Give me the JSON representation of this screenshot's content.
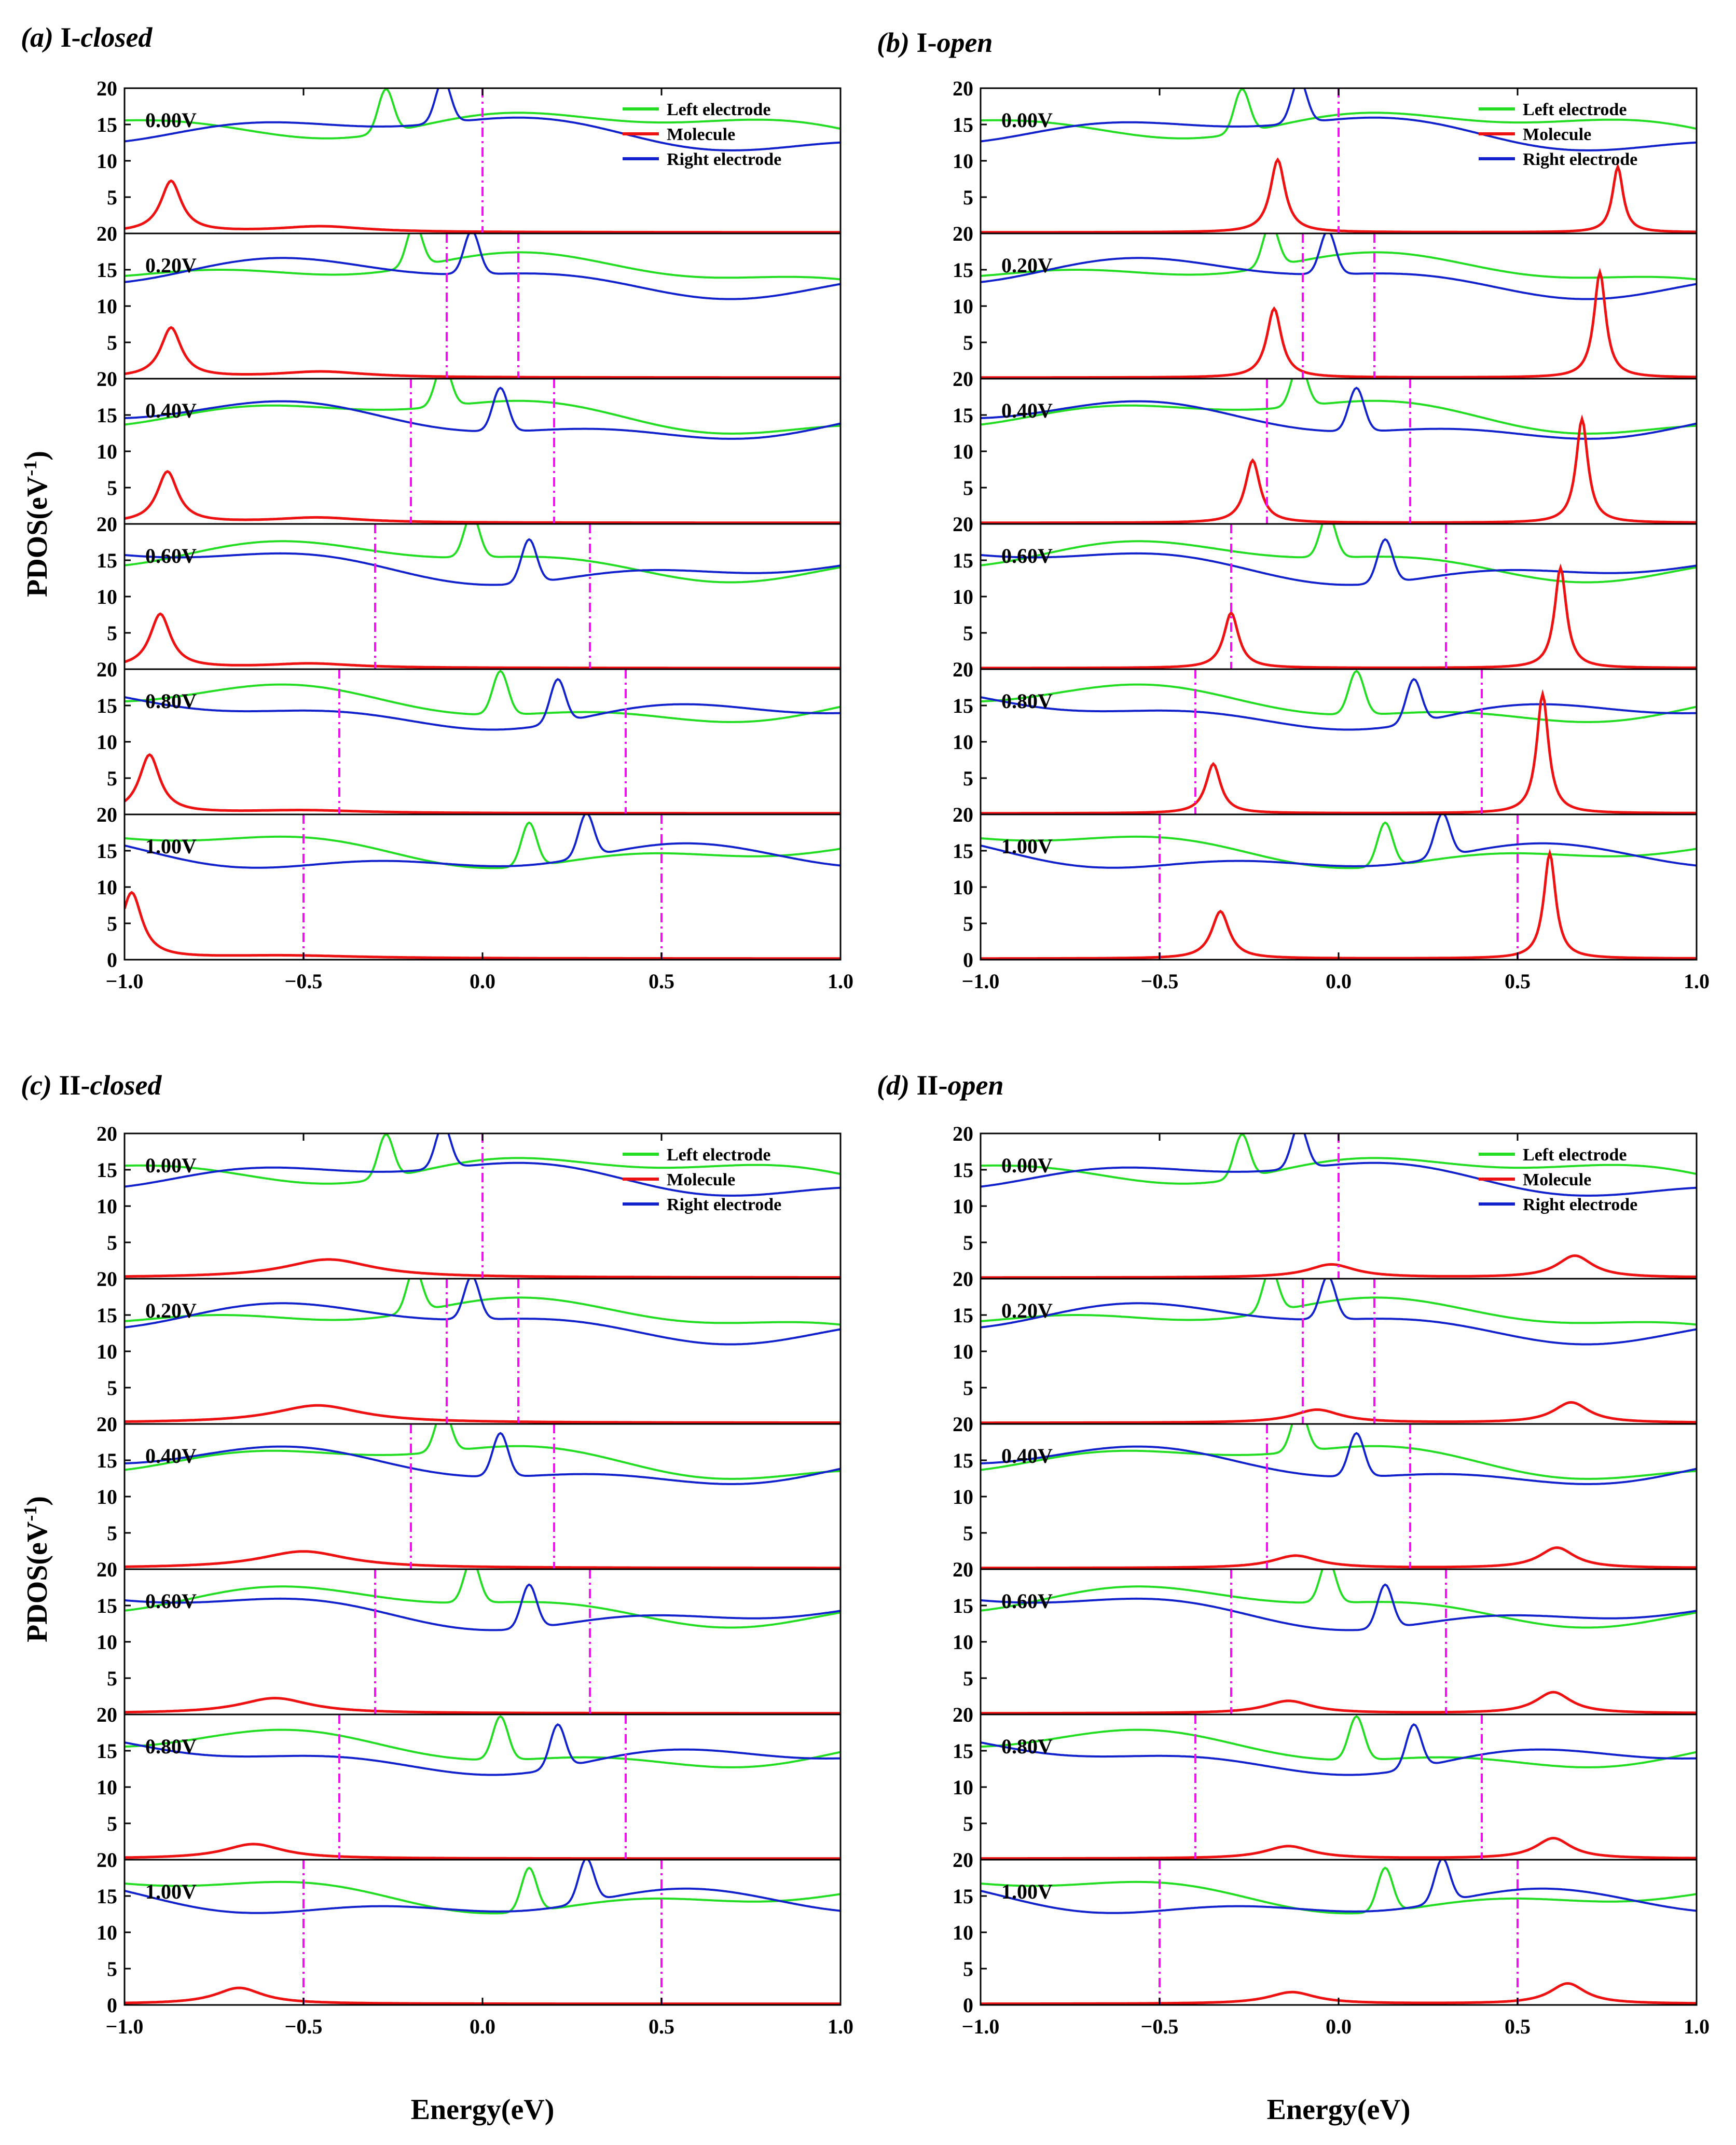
{
  "chart_data": {
    "type": "line",
    "xlabel": "Energy(eV)",
    "ylabel": "PDOS(eV",
    "ylabel_sup": "-1",
    "ylabel_close": ")",
    "xlim": [
      -1.0,
      1.0
    ],
    "ylim": [
      0,
      20
    ],
    "xticks": [
      -1.0,
      -0.5,
      0.0,
      0.5,
      1.0
    ],
    "xtick_labels": [
      "−1.0",
      "−0.5",
      "0.0",
      "0.5",
      "1.0"
    ],
    "yticks": [
      0,
      5,
      10,
      15,
      20
    ],
    "ytick_labels": [
      "0",
      "5",
      "10",
      "15",
      "20"
    ],
    "biases": [
      "0.00V",
      "0.20V",
      "0.40V",
      "0.60V",
      "0.80V",
      "1.00V"
    ],
    "bias_values": [
      0.0,
      0.2,
      0.4,
      0.6,
      0.8,
      1.0
    ],
    "legend": [
      "Left electrode",
      "Molecule",
      "Right electrode"
    ],
    "colors": {
      "left": "#22dd22",
      "molecule": "#ee1111",
      "right": "#1122cc",
      "window": "#ee11ee"
    },
    "panels": [
      {
        "tag": "(a)",
        "name": "I-",
        "state": "closed",
        "molecule_peaks": [
          [
            {
              "x": -0.87,
              "h": 7.0,
              "w": 0.035
            },
            {
              "x": -0.45,
              "h": 0.8,
              "w": 0.15
            }
          ],
          [
            {
              "x": -0.87,
              "h": 6.8,
              "w": 0.035
            },
            {
              "x": -0.45,
              "h": 0.8,
              "w": 0.15
            }
          ],
          [
            {
              "x": -0.88,
              "h": 7.0,
              "w": 0.035
            },
            {
              "x": -0.46,
              "h": 0.7,
              "w": 0.15
            }
          ],
          [
            {
              "x": -0.9,
              "h": 7.4,
              "w": 0.035
            },
            {
              "x": -0.48,
              "h": 0.6,
              "w": 0.15
            }
          ],
          [
            {
              "x": -0.93,
              "h": 8.0,
              "w": 0.035
            },
            {
              "x": -0.5,
              "h": 0.4,
              "w": 0.2
            }
          ],
          [
            {
              "x": -0.98,
              "h": 9.0,
              "w": 0.035
            },
            {
              "x": -0.55,
              "h": 0.4,
              "w": 0.25
            }
          ]
        ]
      },
      {
        "tag": "(b)",
        "name": "I-",
        "state": "open",
        "molecule_peaks": [
          [
            {
              "x": -0.17,
              "h": 10.0,
              "w": 0.025
            },
            {
              "x": 0.78,
              "h": 9.0,
              "w": 0.018
            }
          ],
          [
            {
              "x": -0.18,
              "h": 9.5,
              "w": 0.025
            },
            {
              "x": 0.73,
              "h": 14.5,
              "w": 0.02
            }
          ],
          [
            {
              "x": -0.24,
              "h": 8.6,
              "w": 0.025
            },
            {
              "x": 0.68,
              "h": 14.3,
              "w": 0.02
            }
          ],
          [
            {
              "x": -0.3,
              "h": 7.6,
              "w": 0.025
            },
            {
              "x": 0.62,
              "h": 13.8,
              "w": 0.02
            }
          ],
          [
            {
              "x": -0.35,
              "h": 6.8,
              "w": 0.025
            },
            {
              "x": 0.57,
              "h": 16.4,
              "w": 0.02
            }
          ],
          [
            {
              "x": -0.33,
              "h": 6.5,
              "w": 0.03
            },
            {
              "x": 0.59,
              "h": 14.5,
              "w": 0.02
            }
          ]
        ]
      },
      {
        "tag": "(c)",
        "name": "II-",
        "state": "closed",
        "molecule_peaks": [
          [
            {
              "x": -0.43,
              "h": 2.5,
              "w": 0.15
            }
          ],
          [
            {
              "x": -0.46,
              "h": 2.4,
              "w": 0.15
            }
          ],
          [
            {
              "x": -0.5,
              "h": 2.3,
              "w": 0.15
            }
          ],
          [
            {
              "x": -0.58,
              "h": 2.1,
              "w": 0.12
            }
          ],
          [
            {
              "x": -0.64,
              "h": 2.0,
              "w": 0.1
            }
          ],
          [
            {
              "x": -0.68,
              "h": 2.2,
              "w": 0.08
            }
          ]
        ]
      },
      {
        "tag": "(d)",
        "name": "II-",
        "state": "open",
        "molecule_peaks": [
          [
            {
              "x": -0.02,
              "h": 1.8,
              "w": 0.08
            },
            {
              "x": 0.66,
              "h": 3.0,
              "w": 0.06
            }
          ],
          [
            {
              "x": -0.06,
              "h": 1.8,
              "w": 0.08
            },
            {
              "x": 0.65,
              "h": 2.8,
              "w": 0.06
            }
          ],
          [
            {
              "x": -0.12,
              "h": 1.7,
              "w": 0.08
            },
            {
              "x": 0.61,
              "h": 2.8,
              "w": 0.06
            }
          ],
          [
            {
              "x": -0.14,
              "h": 1.7,
              "w": 0.08
            },
            {
              "x": 0.6,
              "h": 2.9,
              "w": 0.06
            }
          ],
          [
            {
              "x": -0.14,
              "h": 1.7,
              "w": 0.08
            },
            {
              "x": 0.6,
              "h": 2.8,
              "w": 0.06
            }
          ],
          [
            {
              "x": -0.13,
              "h": 1.6,
              "w": 0.08
            },
            {
              "x": 0.64,
              "h": 2.8,
              "w": 0.06
            }
          ]
        ]
      }
    ]
  }
}
